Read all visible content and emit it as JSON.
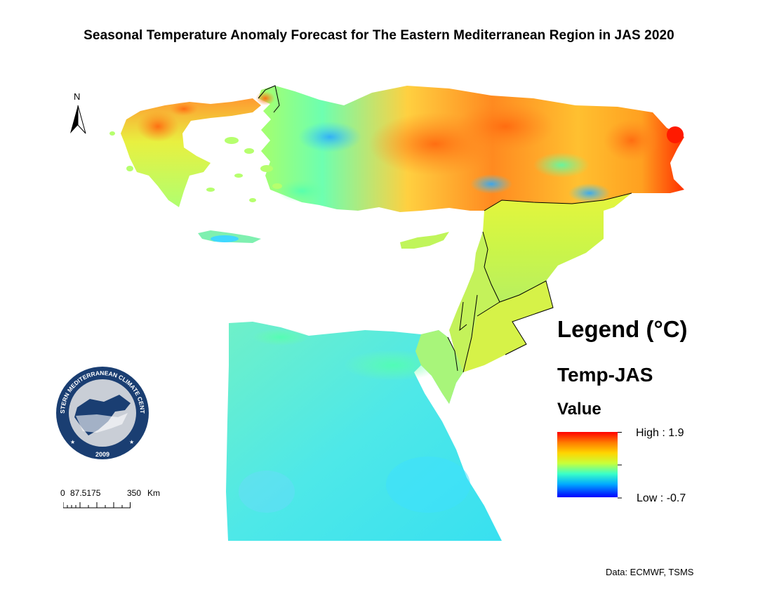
{
  "title": "Seasonal Temperature Anomaly Forecast for The Eastern Mediterranean Region in JAS 2020",
  "north_label": "N",
  "logo": {
    "text_arc": "EASTERN MEDITERRANEAN CLIMATE CENTRE",
    "year": "2009"
  },
  "scale": {
    "tick_0": "0",
    "tick_mid": "87.5175",
    "tick_end": "350",
    "unit": "Km"
  },
  "legend": {
    "title": "Legend (°C)",
    "layer": "Temp-JAS",
    "field": "Value",
    "high_label": "High : 1.9",
    "low_label": "Low : -0.7",
    "high": 1.9,
    "low": -0.7
  },
  "source": "Data: ECMWF, TSMS",
  "colors": {
    "high": "#ff0000",
    "mid_high": "#ffb000",
    "mid": "#c8ff3a",
    "mid_low": "#3affd0",
    "low": "#0000ff"
  }
}
